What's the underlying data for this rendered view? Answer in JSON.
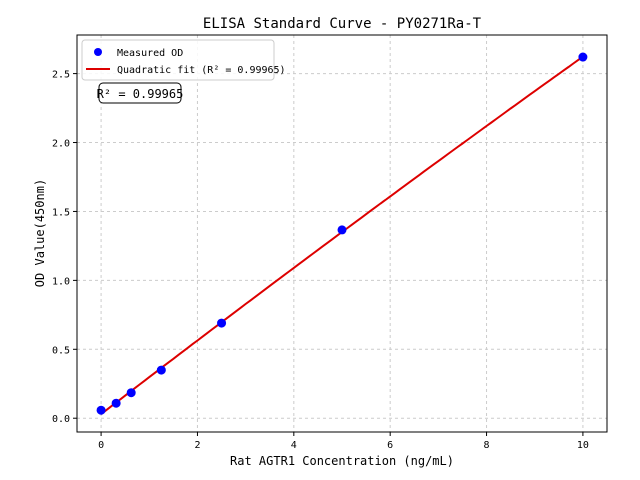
{
  "chart_data": {
    "type": "scatter",
    "title": "ELISA Standard Curve - PY0271Ra-T",
    "xlabel": "Rat AGTR1 Concentration (ng/mL)",
    "ylabel": "OD Value(450nm)",
    "xlim": [
      -0.5,
      10.5
    ],
    "ylim": [
      -0.1,
      2.78
    ],
    "xticks": [
      0,
      2,
      4,
      6,
      8,
      10
    ],
    "yticks": [
      0.0,
      0.5,
      1.0,
      1.5,
      2.0,
      2.5
    ],
    "grid": true,
    "legend_position": "top-left",
    "series": [
      {
        "name": "Measured OD",
        "kind": "scatter",
        "color": "#0000ff",
        "x": [
          0,
          0.3125,
          0.625,
          1.25,
          2.5,
          5,
          10
        ],
        "y": [
          0.058,
          0.109,
          0.185,
          0.349,
          0.69,
          1.366,
          2.62
        ]
      },
      {
        "name": "Quadratic fit (R² = 0.99965)",
        "kind": "line",
        "color": "#dd0000"
      }
    ],
    "annotation": "R² = 0.99965"
  }
}
